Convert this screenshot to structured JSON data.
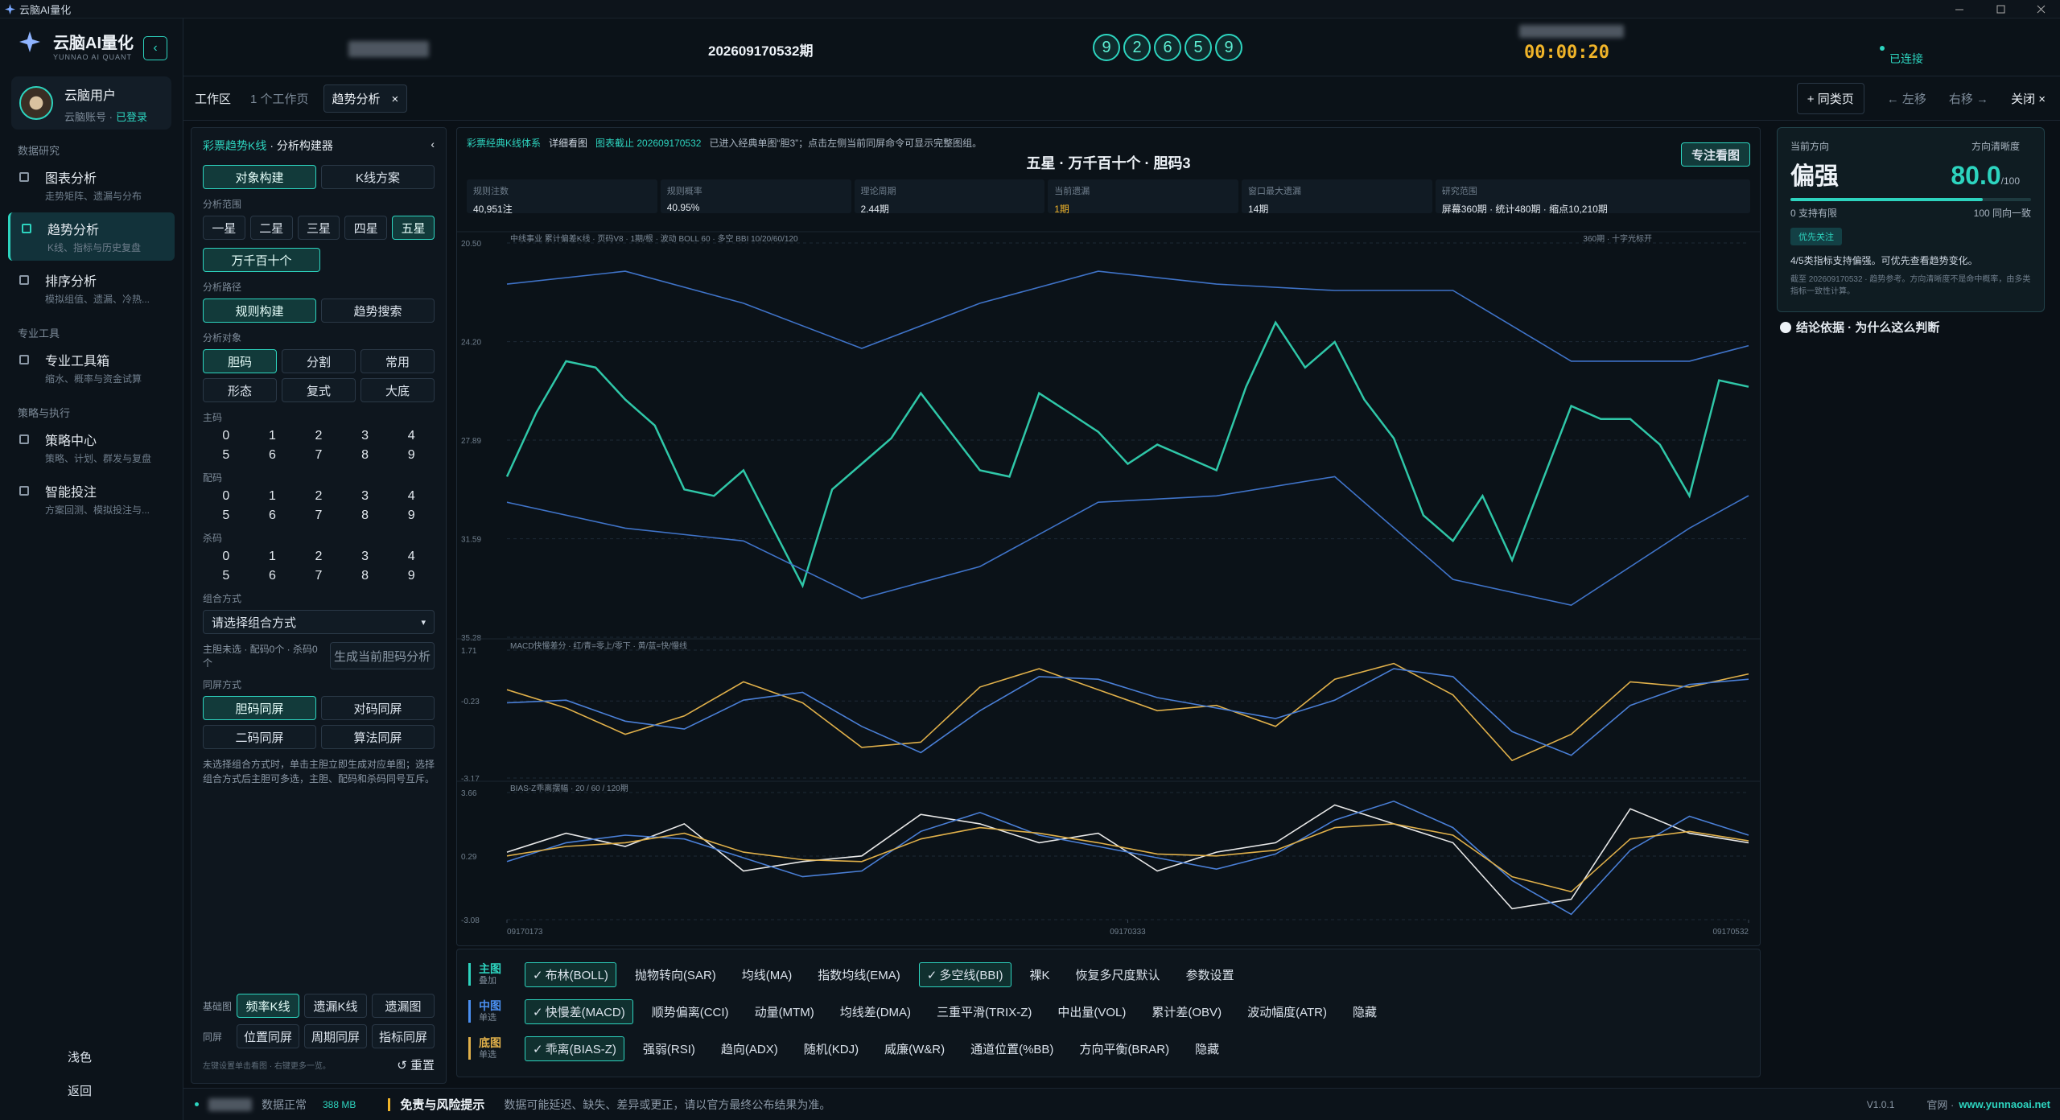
{
  "app": {
    "title": "云脑AI量化"
  },
  "sidebar": {
    "brand": "云脑AI量化",
    "brand_sub": "YUNNAO AI QUANT",
    "user": "云脑用户",
    "user_sub": "云脑账号 ·",
    "user_status": "已登录",
    "sections": [
      {
        "title": "数据研究",
        "items": [
          {
            "label": "图表分析",
            "desc": "走势矩阵、遗漏与分布"
          },
          {
            "label": "趋势分析",
            "desc": "K线、指标与历史复盘",
            "selected": true
          },
          {
            "label": "排序分析",
            "desc": "模拟组值、遗漏、冷热..."
          }
        ]
      },
      {
        "title": "专业工具",
        "items": [
          {
            "label": "专业工具箱",
            "desc": "缩水、概率与资金试算"
          }
        ]
      },
      {
        "title": "策略与执行",
        "items": [
          {
            "label": "策略中心",
            "desc": "策略、计划、群发与复盘"
          },
          {
            "label": "智能投注",
            "desc": "方案回测、模拟投注与..."
          }
        ]
      }
    ],
    "theme": "浅色",
    "back": "返回"
  },
  "header": {
    "period": "202609170532期",
    "numbers": [
      9,
      2,
      6,
      5,
      9
    ],
    "timer": "00:00:20",
    "status": "已连接"
  },
  "tabs": {
    "workspace": "工作区",
    "count": "1 个工作页",
    "active": "趋势分析",
    "close": "×",
    "add": "+ 同类页",
    "left": "← 左移",
    "right": "右移 →",
    "close_all": "关闭 ×"
  },
  "builder": {
    "title": "彩票趋势K线",
    "subtitle": "· 分析构建器",
    "collapse": "‹",
    "modes": [
      {
        "label": "对象构建",
        "selected": true
      },
      {
        "label": "K线方案"
      }
    ],
    "range_label": "分析范围",
    "ranges": [
      {
        "label": "一星"
      },
      {
        "label": "二星"
      },
      {
        "label": "三星"
      },
      {
        "label": "四星"
      },
      {
        "label": "五星",
        "selected": true
      }
    ],
    "range_extra": "万千百十个",
    "path_label": "分析路径",
    "paths": [
      {
        "label": "规则构建",
        "selected": true
      },
      {
        "label": "趋势搜索"
      }
    ],
    "object_label": "分析对象",
    "objects": [
      {
        "label": "胆码",
        "selected": true
      },
      {
        "label": "分割"
      },
      {
        "label": "常用"
      },
      {
        "label": "形态"
      },
      {
        "label": "复式"
      },
      {
        "label": "大底"
      }
    ],
    "digit_groups": [
      {
        "label": "主码",
        "digits": [
          0,
          1,
          2,
          3,
          4,
          5,
          6,
          7,
          8,
          9
        ]
      },
      {
        "label": "配码",
        "digits": [
          0,
          1,
          2,
          3,
          4,
          5,
          6,
          7,
          8,
          9
        ]
      },
      {
        "label": "杀码",
        "digits": [
          0,
          1,
          2,
          3,
          4,
          5,
          6,
          7,
          8,
          9
        ]
      }
    ],
    "combo_label": "组合方式",
    "combo_select": "请选择组合方式",
    "combo_arrow": "▾",
    "combo_note": "主胆未选 · 配码0个 · 杀码0个",
    "generate": "生成当前胆码分析",
    "sync_label": "同屏方式",
    "syncs": [
      {
        "label": "胆码同屏",
        "selected": true
      },
      {
        "label": "对码同屏"
      },
      {
        "label": "二码同屏"
      },
      {
        "label": "算法同屏"
      }
    ],
    "hint": "未选择组合方式时，单击主胆立即生成对应单图；选择组合方式后主胆可多选，主胆、配码和杀码同号互斥。",
    "base_label": "基础图",
    "bases": [
      {
        "label": "频率K线",
        "selected": true
      },
      {
        "label": "遗漏K线"
      },
      {
        "label": "遗漏图"
      }
    ],
    "screen_label": "同屏",
    "screens": [
      {
        "label": "位置同屏"
      },
      {
        "label": "周期同屏"
      },
      {
        "label": "指标同屏"
      }
    ],
    "footnote": "左键设置单击看图 · 右键更多一览。",
    "reset": "↺ 重置"
  },
  "chart_head": {
    "tag1": "彩票经典K线体系",
    "tag2": "详细看图",
    "tag3": "图表截止 202609170532",
    "note": "已进入经典单图“胆3”；点击左侧当前同屏命令可显示完整图组。",
    "title": "五星 · 万千百十个 · 胆码3",
    "focus": "专注看图"
  },
  "stats": [
    {
      "label": "规则注数",
      "value": "40,951注"
    },
    {
      "label": "规则概率",
      "value": "40.95%"
    },
    {
      "label": "理论周期",
      "value": "2.44期"
    },
    {
      "label": "当前遗漏",
      "value": "1期"
    },
    {
      "label": "窗口最大遗漏",
      "value": "14期"
    },
    {
      "label": "研究范围",
      "value": "屏幕360期 · 统计480期 · 缩点10,210期"
    }
  ],
  "chart_data": [
    {
      "type": "line",
      "subtitle": "中线事业 累计偏差K线 · 页码V8 · 1期/根 · 波动 BOLL 60 · 多空 BBI 10/20/60/120",
      "note": "360期 · 十字光标开",
      "xlim": [
        0,
        42
      ],
      "ylim": [
        35.28,
        20.5
      ],
      "grid": true,
      "yticks": [
        {
          "value": 20.5,
          "label": "20.50"
        },
        {
          "value": 24.2,
          "label": "24.20"
        },
        {
          "value": 27.89,
          "label": "27.89"
        },
        {
          "value": 31.59,
          "label": "31.59"
        },
        {
          "value": 35.28,
          "label": "35.28"
        }
      ],
      "series": [
        {
          "color": "#2fc7a8",
          "x": [
            0,
            1,
            2,
            3,
            4,
            5,
            6,
            7,
            8,
            9,
            10,
            11,
            12,
            13,
            14,
            15,
            16,
            17,
            18,
            19,
            20,
            21,
            22,
            23,
            24,
            25,
            26,
            27,
            28,
            29,
            30,
            31,
            32,
            33,
            34,
            35,
            36,
            37,
            38,
            39,
            40,
            41,
            42
          ],
          "values": [
            29.26,
            26.85,
            24.93,
            25.17,
            26.37,
            27.34,
            29.74,
            29.98,
            29.02,
            31.19,
            33.35,
            29.74,
            28.78,
            27.82,
            26.13,
            27.58,
            29.02,
            29.26,
            26.13,
            26.85,
            27.58,
            28.78,
            28.06,
            28.54,
            29.02,
            25.89,
            23.48,
            25.17,
            24.21,
            26.37,
            27.82,
            30.71,
            31.67,
            29.98,
            32.39,
            29.5,
            26.61,
            27.1,
            27.1,
            28.06,
            29.98,
            25.65,
            25.89
          ]
        },
        {
          "color": "#3f73c8",
          "x": [
            0,
            4,
            8,
            12,
            16,
            20,
            24,
            28,
            32,
            36,
            40,
            42
          ],
          "values": [
            22.04,
            21.56,
            22.76,
            24.45,
            22.76,
            21.56,
            22.04,
            22.28,
            22.28,
            24.93,
            24.93,
            24.35
          ]
        },
        {
          "color": "#3f73c8",
          "x": [
            0,
            4,
            8,
            12,
            16,
            20,
            24,
            28,
            32,
            36,
            40,
            42
          ],
          "values": [
            30.22,
            31.19,
            31.67,
            33.83,
            32.63,
            30.22,
            29.98,
            29.26,
            33.11,
            34.08,
            31.19,
            29.97
          ]
        }
      ]
    },
    {
      "type": "line",
      "subtitle": "MACD快慢差分 · 红/青=零上/零下 · 黄/蓝=快/慢线",
      "xlim": [
        0,
        42
      ],
      "ylim": [
        -3.17,
        1.71
      ],
      "grid": true,
      "yticks": [
        1.71,
        -0.23,
        -3.17
      ],
      "series": [
        {
          "color": "#e0b04a",
          "x": [
            0,
            2,
            4,
            6,
            8,
            10,
            12,
            14,
            16,
            18,
            20,
            22,
            24,
            26,
            28,
            30,
            32,
            34,
            36,
            38,
            40,
            42
          ],
          "values": [
            0.2,
            -0.5,
            -1.5,
            -0.8,
            0.5,
            -0.3,
            -2.0,
            -1.8,
            0.3,
            1.0,
            0.2,
            -0.6,
            -0.4,
            -1.2,
            0.6,
            1.2,
            0.0,
            -2.5,
            -1.5,
            0.5,
            0.3,
            0.8
          ]
        },
        {
          "color": "#4a7fd6",
          "x": [
            0,
            2,
            4,
            6,
            8,
            10,
            12,
            14,
            16,
            18,
            20,
            22,
            24,
            26,
            28,
            30,
            32,
            34,
            36,
            38,
            40,
            42
          ],
          "values": [
            -0.3,
            -0.2,
            -1.0,
            -1.3,
            -0.2,
            0.1,
            -1.2,
            -2.2,
            -0.6,
            0.7,
            0.6,
            -0.1,
            -0.5,
            -0.9,
            -0.2,
            1.0,
            0.7,
            -1.4,
            -2.3,
            -0.4,
            0.4,
            0.6
          ]
        }
      ]
    },
    {
      "type": "line",
      "subtitle": "BIAS-Z乖离摆幅 · 20 / 60 / 120期",
      "xlim": [
        0,
        42
      ],
      "ylim": [
        -3.08,
        3.66
      ],
      "grid": true,
      "yticks": [
        3.66,
        0.29,
        -3.08
      ],
      "xticks": [
        {
          "value": 0,
          "label": "09170173"
        },
        {
          "value": 21,
          "label": "09170333"
        },
        {
          "value": 42,
          "label": "09170532"
        }
      ],
      "series": [
        {
          "color": "#e8e8e8",
          "x": [
            0,
            2,
            4,
            6,
            8,
            10,
            12,
            14,
            16,
            18,
            20,
            22,
            24,
            26,
            28,
            30,
            32,
            34,
            36,
            38,
            40,
            42
          ],
          "values": [
            0.5,
            1.5,
            0.8,
            2.0,
            -0.5,
            0.0,
            0.3,
            2.5,
            2.0,
            1.0,
            1.5,
            -0.5,
            0.5,
            1.0,
            3.0,
            2.0,
            1.0,
            -2.5,
            -2.0,
            2.8,
            1.5,
            1.0
          ]
        },
        {
          "color": "#4a7fd6",
          "x": [
            0,
            2,
            4,
            6,
            8,
            10,
            12,
            14,
            16,
            18,
            20,
            22,
            24,
            26,
            28,
            30,
            32,
            34,
            36,
            38,
            40,
            42
          ],
          "values": [
            0.0,
            1.0,
            1.4,
            1.2,
            0.2,
            -0.8,
            -0.5,
            1.6,
            2.6,
            1.4,
            0.8,
            0.2,
            -0.4,
            0.4,
            2.2,
            3.2,
            1.8,
            -1.0,
            -2.8,
            0.6,
            2.4,
            1.4
          ]
        },
        {
          "color": "#e0b04a",
          "x": [
            0,
            2,
            4,
            6,
            8,
            10,
            12,
            14,
            16,
            18,
            20,
            22,
            24,
            26,
            28,
            30,
            32,
            34,
            36,
            38,
            40,
            42
          ],
          "values": [
            0.3,
            0.8,
            1.0,
            1.5,
            0.5,
            0.1,
            0.0,
            1.2,
            1.8,
            1.5,
            1.0,
            0.4,
            0.3,
            0.6,
            1.8,
            2.0,
            1.4,
            -0.8,
            -1.6,
            1.2,
            1.6,
            1.1
          ]
        }
      ]
    }
  ],
  "indicators": [
    {
      "name": "主图",
      "sub": "叠加",
      "color": "#2dd4bf",
      "items": [
        {
          "label": "布林(BOLL)",
          "checked": true
        },
        {
          "label": "抛物转向(SAR)"
        },
        {
          "label": "均线(MA)"
        },
        {
          "label": "指数均线(EMA)"
        },
        {
          "label": "多空线(BBI)",
          "checked": true
        },
        {
          "label": "裸K"
        },
        {
          "label": "恢复多尺度默认"
        },
        {
          "label": "参数设置"
        }
      ]
    },
    {
      "name": "中图",
      "sub": "单选",
      "color": "#4a8ff0",
      "items": [
        {
          "label": "快慢差(MACD)",
          "checked": true
        },
        {
          "label": "顺势偏离(CCI)"
        },
        {
          "label": "动量(MTM)"
        },
        {
          "label": "均线差(DMA)"
        },
        {
          "label": "三重平滑(TRIX-Z)"
        },
        {
          "label": "中出量(VOL)"
        },
        {
          "label": "累计差(OBV)"
        },
        {
          "label": "波动幅度(ATR)"
        },
        {
          "label": "隐藏"
        }
      ]
    },
    {
      "name": "底图",
      "sub": "单选",
      "color": "#e0b04a",
      "items": [
        {
          "label": "乖离(BIAS-Z)",
          "checked": true
        },
        {
          "label": "强弱(RSI)"
        },
        {
          "label": "趋向(ADX)"
        },
        {
          "label": "随机(KDJ)"
        },
        {
          "label": "威廉(W&R)"
        },
        {
          "label": "通道位置(%BB)"
        },
        {
          "label": "方向平衡(BRAR)"
        },
        {
          "label": "隐藏"
        }
      ]
    }
  ],
  "check": "✓",
  "right": {
    "dir_label": "当前方向",
    "dir": "偏强",
    "clarity_label": "方向清晰度",
    "clarity": {
      "value": 80,
      "label": "80.0"
    },
    "clarity_max": "/100",
    "clarity_range": [
      0,
      100
    ],
    "scale_left": "0 支持有限",
    "scale_right": "100 同向一致",
    "badge": "优先关注",
    "desc": "4/5类指标支持偏强。可优先查看趋势变化。",
    "small": "截至 202609170532 · 趋势参考。方向清晰度不是命中概率，由多类指标一致性计算。",
    "reason": "结论依据 · 为什么这么判断"
  },
  "footer": {
    "status": "数据正常",
    "mem": "388 MB",
    "warn_title": "免责与风险提示",
    "warn": "数据可能延迟、缺失、差异或更正，请以官方最终公布结果为准。",
    "version": "V1.0.1",
    "site_label": "官网 ·",
    "site": "www.yunnaoai.net"
  }
}
